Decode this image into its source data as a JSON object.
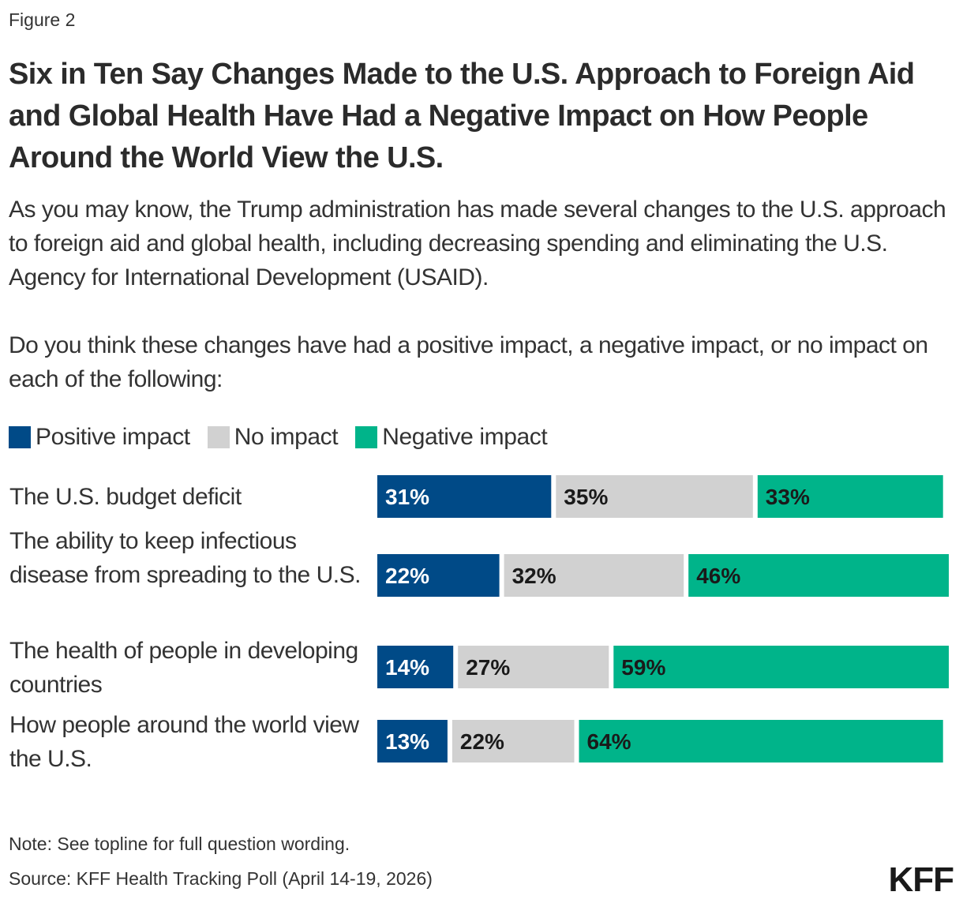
{
  "figure_label": "Figure 2",
  "title": "Six in Ten Say Changes Made to the U.S. Approach to Foreign Aid and Global Health Have Had a Negative Impact on How People Around the World View the U.S.",
  "subtitle_p1": "As you may know, the Trump administration has made several changes to the U.S. approach to foreign aid and global health, including decreasing spending and eliminating the U.S. Agency for International Development (USAID).",
  "subtitle_p2": "Do you think these changes have had a positive impact, a negative impact, or no impact on each of the following:",
  "note": "Note: See topline for full question wording.",
  "source": "Source: KFF Health Tracking Poll (April 14-19, 2026)",
  "logo_text": "KFF",
  "colors": {
    "positive": "#004A87",
    "none": "#D1D1D1",
    "negative": "#00B48A"
  },
  "chart_data": {
    "type": "bar",
    "orientation": "horizontal",
    "stacked": true,
    "unit": "%",
    "categories": [
      "The U.S. budget deficit",
      "The ability to keep infectious disease from spreading to the U.S.",
      "The health of people in developing countries",
      "How people around the world view the U.S."
    ],
    "series": [
      {
        "name": "Positive impact",
        "values": [
          31,
          22,
          14,
          13
        ],
        "labels": [
          "31%",
          "22%",
          "14%",
          "13%"
        ]
      },
      {
        "name": "No impact",
        "values": [
          35,
          32,
          27,
          22
        ],
        "labels": [
          "35%",
          "32%",
          "27%",
          "22%"
        ]
      },
      {
        "name": "Negative impact",
        "values": [
          33,
          46,
          59,
          64
        ],
        "labels": [
          "33%",
          "46%",
          "59%",
          "64%"
        ]
      }
    ],
    "legend": "top-left",
    "grid": false
  }
}
